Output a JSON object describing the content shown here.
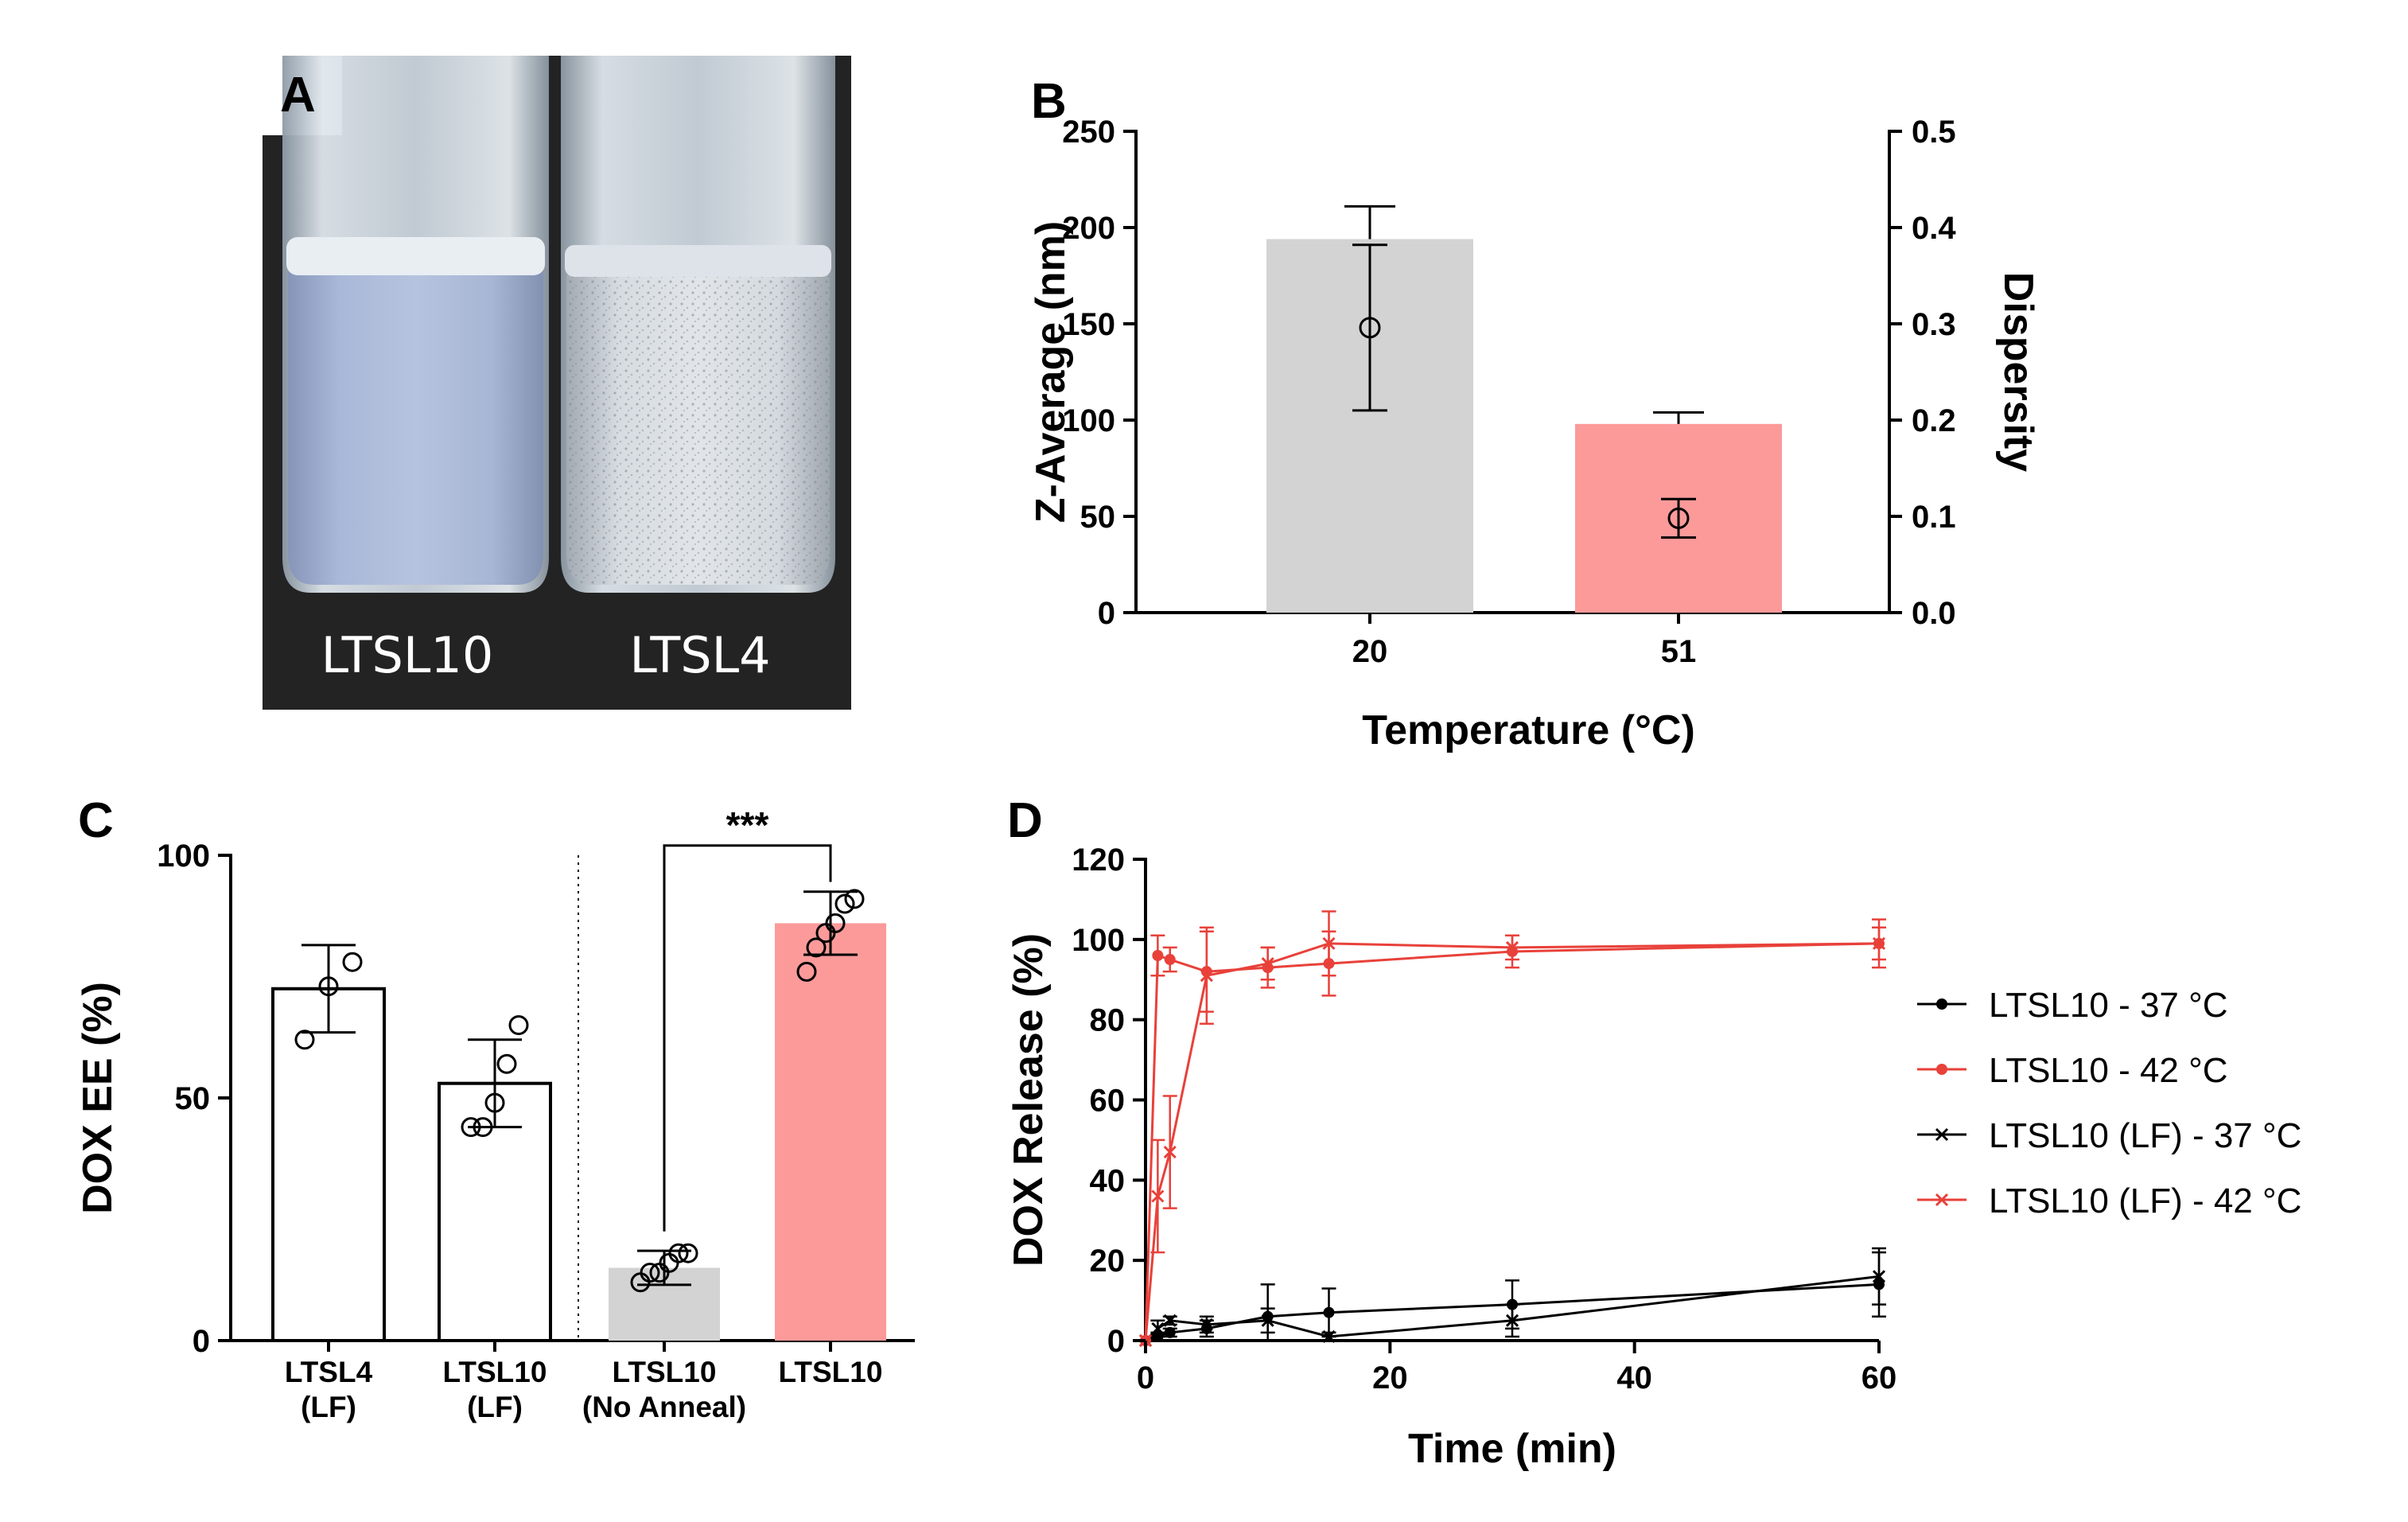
{
  "panels": {
    "a": {
      "label": "A",
      "vial_labels": [
        "LTSL10",
        "LTSL4"
      ]
    },
    "b": {
      "label": "B"
    },
    "c": {
      "label": "C"
    },
    "d": {
      "label": "D"
    }
  },
  "chart_data": [
    {
      "id": "B",
      "type": "bar",
      "categories": [
        "20",
        "51"
      ],
      "xlabel": "Temperature (°C)",
      "ylabel": "Z-Average (nm)",
      "ylabel_right": "Dispersity",
      "ylim": [
        0,
        250
      ],
      "yticks": [
        0,
        50,
        100,
        150,
        200,
        250
      ],
      "ylim_right": [
        0,
        0.5
      ],
      "yticks_right": [
        "0.0",
        "0.1",
        "0.2",
        "0.3",
        "0.4",
        "0.5"
      ],
      "bar_colors": [
        "#d3d3d3",
        "#fc9a9a"
      ],
      "zavg": {
        "values": [
          194,
          98
        ],
        "err": [
          17,
          6
        ]
      },
      "dispersity": {
        "values": [
          0.296,
          0.098
        ],
        "err": [
          0.086,
          0.02
        ]
      }
    },
    {
      "id": "C",
      "type": "bar",
      "categories": [
        "LTSL4\n(LF)",
        "LTSL10\n(LF)",
        "LTSL10\n(No Anneal)",
        "LTSL10"
      ],
      "ylabel": "DOX EE (%)",
      "ylim": [
        0,
        100
      ],
      "yticks": [
        0,
        50,
        100
      ],
      "bar_colors": [
        "#ffffff",
        "#ffffff",
        "#d3d3d3",
        "#fc9a9a"
      ],
      "values": [
        72.5,
        53,
        15,
        86
      ],
      "err": [
        9,
        9,
        3.5,
        6.5
      ],
      "points": [
        [
          62,
          73,
          78
        ],
        [
          44,
          44,
          49,
          57,
          65
        ],
        [
          12,
          14,
          14,
          16,
          18,
          18
        ],
        [
          76,
          81,
          84,
          86,
          90,
          91
        ]
      ],
      "significance": {
        "from": 2,
        "to": 3,
        "label": "***"
      }
    },
    {
      "id": "D",
      "type": "line",
      "xlabel": "Time (min)",
      "ylabel": "DOX Release (%)",
      "xlim": [
        0,
        60
      ],
      "xticks": [
        0,
        20,
        40,
        60
      ],
      "ylim": [
        0,
        120
      ],
      "yticks": [
        0,
        20,
        40,
        60,
        80,
        100,
        120
      ],
      "legend_position": "right",
      "series": [
        {
          "name": "LTSL10 - 37 °C",
          "color": "#000000",
          "marker": "dot",
          "x": [
            0,
            1,
            2,
            5,
            10,
            15,
            30,
            60
          ],
          "y": [
            0,
            1,
            2,
            3,
            6,
            7,
            9,
            14
          ],
          "err": [
            0,
            1,
            1,
            2,
            8,
            6,
            6,
            8
          ]
        },
        {
          "name": "LTSL10 - 42 °C",
          "color": "#e8413a",
          "marker": "dot",
          "x": [
            0,
            1,
            2,
            5,
            10,
            15,
            30,
            60
          ],
          "y": [
            0,
            96,
            95,
            92,
            93,
            94,
            97,
            99
          ],
          "err": [
            0,
            5,
            3,
            10,
            5,
            8,
            4,
            6
          ]
        },
        {
          "name": "LTSL10 (LF) - 37 °C",
          "color": "#000000",
          "marker": "x",
          "x": [
            0,
            1,
            2,
            5,
            10,
            15,
            30,
            60
          ],
          "y": [
            0,
            3,
            5,
            4,
            5,
            1,
            5,
            16
          ],
          "err": [
            0,
            2,
            1,
            2,
            3,
            1,
            4,
            7
          ]
        },
        {
          "name": "LTSL10 (LF) - 42 °C",
          "color": "#e8413a",
          "marker": "x",
          "x": [
            0,
            1,
            2,
            5,
            10,
            15,
            30,
            60
          ],
          "y": [
            0,
            36,
            47,
            91,
            94,
            99,
            98,
            99
          ],
          "err": [
            0,
            14,
            14,
            12,
            4,
            8,
            3,
            4
          ]
        }
      ]
    }
  ]
}
